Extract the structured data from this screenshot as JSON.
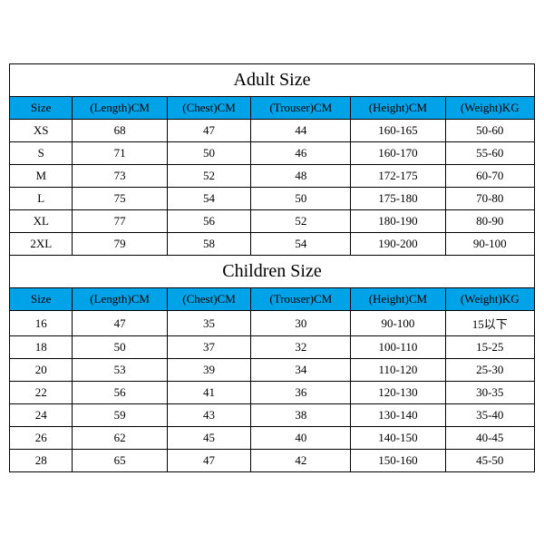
{
  "adult": {
    "title": "Adult Size",
    "headers": [
      "Size",
      "(Length)CM",
      "(Chest)CM",
      "(Trouser)CM",
      "(Height)CM",
      "(Weight)KG"
    ],
    "rows": [
      [
        "XS",
        "68",
        "47",
        "44",
        "160-165",
        "50-60"
      ],
      [
        "S",
        "71",
        "50",
        "46",
        "160-170",
        "55-60"
      ],
      [
        "M",
        "73",
        "52",
        "48",
        "172-175",
        "60-70"
      ],
      [
        "L",
        "75",
        "54",
        "50",
        "175-180",
        "70-80"
      ],
      [
        "XL",
        "77",
        "56",
        "52",
        "180-190",
        "80-90"
      ],
      [
        "2XL",
        "79",
        "58",
        "54",
        "190-200",
        "90-100"
      ]
    ]
  },
  "children": {
    "title": "Children Size",
    "headers": [
      "Size",
      "(Length)CM",
      "(Chest)CM",
      "(Trouser)CM",
      "(Height)CM",
      "(Weight)KG"
    ],
    "rows": [
      [
        "16",
        "47",
        "35",
        "30",
        "90-100",
        "15以下"
      ],
      [
        "18",
        "50",
        "37",
        "32",
        "100-110",
        "15-25"
      ],
      [
        "20",
        "53",
        "39",
        "34",
        "110-120",
        "25-30"
      ],
      [
        "22",
        "56",
        "41",
        "36",
        "120-130",
        "30-35"
      ],
      [
        "24",
        "59",
        "43",
        "38",
        "130-140",
        "35-40"
      ],
      [
        "26",
        "62",
        "45",
        "40",
        "140-150",
        "40-45"
      ],
      [
        "28",
        "65",
        "47",
        "42",
        "150-160",
        "45-50"
      ]
    ]
  },
  "style": {
    "header_bg": "#00a2e8",
    "border_color": "#000000",
    "bg": "#ffffff",
    "title_fontsize": 20,
    "cell_fontsize": 13
  }
}
